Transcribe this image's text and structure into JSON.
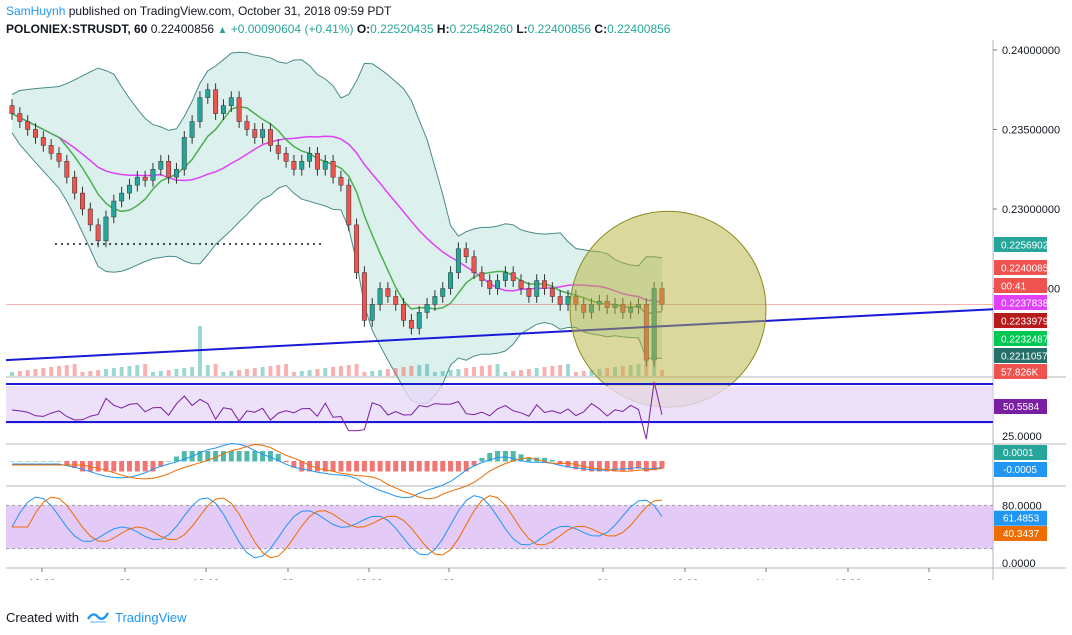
{
  "header": {
    "author": "SamHuynh",
    "published_text": "published on TradingView.com, October 31, 2018 09:59 PDT",
    "symbol": "POLONIEX:STRUSDT, 60",
    "last": "0.22400856",
    "change_arrow": "▲",
    "change": "+0.00090604 (+0.41%)",
    "o_label": "O:",
    "o_value": "0.22520435",
    "h_label": "H:",
    "h_value": "0.22548260",
    "l_label": "L:",
    "l_value": "0.22400856",
    "c_label": "C:",
    "c_value": "0.22400856"
  },
  "footer": {
    "created_with": "Created with",
    "brand": "TradingView"
  },
  "colors": {
    "up": "#26a69a",
    "down": "#ef5350",
    "bb_fill": "#cdeae6",
    "bb_line": "#4a8a8a",
    "ma_fast": "#4caf50",
    "ma_slow": "#e040fb",
    "trendline": "#1a1ad6",
    "circle_fill": "#b5b23a",
    "rsi_band": "#e8d8f7",
    "stoch_band": "#dcbdf5"
  },
  "chart_data": [
    {
      "type": "candlestick",
      "panel": "price",
      "symbol": "POLONIEX:STRUSDT",
      "interval": "60",
      "ylim": [
        0.2195,
        0.2405
      ],
      "y_ticks": [
        "0.24000000",
        "0.23500000",
        "0.23000000",
        "0.22500000"
      ],
      "x_ticks": [
        "12:00",
        "28",
        "12:00",
        "29",
        "12:00",
        "30",
        "31",
        "12:00",
        "Nov",
        "12:00",
        "2"
      ],
      "price_labels": [
        {
          "text": "0.22569023",
          "color": "#26a69a"
        },
        {
          "text": "0.22400856",
          "color": "#ef5350"
        },
        {
          "text": "00:41",
          "color": "#ef5350"
        },
        {
          "text": "0.22378388",
          "color": "#e040fb"
        },
        {
          "text": "0.22339799",
          "color": "#b71c1c"
        },
        {
          "text": "0.22324875",
          "color": "#00c853"
        },
        {
          "text": "0.22110576",
          "color": "#26706a"
        },
        {
          "text": "57.826K",
          "color": "#ef5350"
        }
      ],
      "overlays": [
        "Bollinger Bands",
        "Moving Average (fast)",
        "Moving Average (slow)",
        "Trend line",
        "Volume"
      ],
      "series": [
        {
          "close": [
            0.236,
            0.2355,
            0.235,
            0.2345,
            0.234,
            0.2335,
            0.233,
            0.232,
            0.231,
            0.23,
            0.229,
            0.228,
            0.2295,
            0.2305,
            0.231,
            0.2315,
            0.232,
            0.2318,
            0.2325,
            0.233,
            0.232,
            0.2325,
            0.2345,
            0.2355,
            0.237,
            0.2375,
            0.236,
            0.2365,
            0.237,
            0.2355,
            0.235,
            0.2345,
            0.235,
            0.234,
            0.2335,
            0.233,
            0.2325,
            0.233,
            0.2335,
            0.2325,
            0.233,
            0.232,
            0.2315,
            0.229,
            0.226,
            0.223,
            0.224,
            0.225,
            0.2245,
            0.224,
            0.223,
            0.2225,
            0.2235,
            0.224,
            0.2245,
            0.225,
            0.226,
            0.2275,
            0.227,
            0.226,
            0.2255,
            0.225,
            0.2255,
            0.226,
            0.2255,
            0.225,
            0.2245,
            0.2255,
            0.225,
            0.2245,
            0.224,
            0.2245,
            0.224,
            0.2235,
            0.224,
            0.2242,
            0.2238,
            0.224,
            0.2235,
            0.2238,
            0.224,
            0.2205,
            0.225,
            0.224
          ]
        }
      ]
    },
    {
      "type": "line",
      "panel": "rsi",
      "ylim": [
        25,
        75
      ],
      "y_ticks": [
        "25.0000"
      ],
      "current_label": {
        "text": "50.5584",
        "color": "#7b1fa2"
      }
    },
    {
      "type": "histogram",
      "panel": "macd",
      "labels": [
        {
          "text": "0.0001",
          "color": "#26a69a"
        },
        {
          "text": "-0.0005",
          "color": "#2196f3"
        }
      ]
    },
    {
      "type": "line",
      "panel": "stochastic",
      "ylim": [
        0,
        100
      ],
      "y_ticks": [
        "80.0000",
        "0.0000"
      ],
      "labels": [
        {
          "text": "61.4853",
          "color": "#2196f3"
        },
        {
          "text": "40.3437",
          "color": "#ef6c00"
        }
      ]
    }
  ]
}
